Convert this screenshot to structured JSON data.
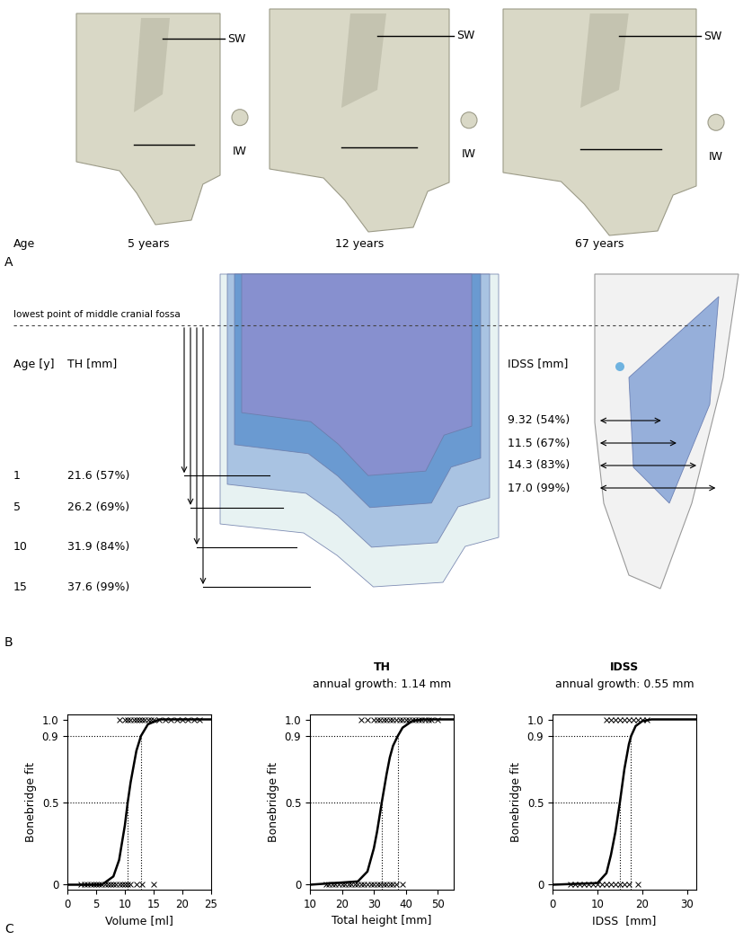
{
  "panel_A": {
    "label": "A",
    "age_label": "Age",
    "specimens": [
      {
        "age": "5 years",
        "sw_label": "SW",
        "iw_label": "IW"
      },
      {
        "age": "12 years",
        "sw_label": "SW",
        "iw_label": "IW"
      },
      {
        "age": "67 years",
        "sw_label": "SW",
        "iw_label": "IW"
      }
    ]
  },
  "panel_B": {
    "label": "B",
    "reference_line": "lowest point of middle cranial fossa",
    "th_table": {
      "age_header": "Age [y]",
      "value_header": "TH [mm]",
      "rows": [
        {
          "age": 1,
          "value": 21.6,
          "label": "21.6 (57%)"
        },
        {
          "age": 5,
          "value": 26.2,
          "label": "26.2 (69%)"
        },
        {
          "age": 10,
          "value": 31.9,
          "label": "31.9 (84%)"
        },
        {
          "age": 15,
          "value": 37.6,
          "label": "37.6 (99%)"
        }
      ]
    },
    "idss_table": {
      "value_header": "IDSS [mm]",
      "rows": [
        {
          "value": 9.32,
          "label": "9.32 (54%)"
        },
        {
          "value": 11.5,
          "label": "11.5 (67%)"
        },
        {
          "value": 14.3,
          "label": "14.3 (83%)"
        },
        {
          "value": 17.0,
          "label": "17.0 (99%)"
        }
      ]
    },
    "measures": [
      {
        "title": "TH",
        "subtitle": "annual growth: 1.14 mm"
      },
      {
        "title": "IDSS",
        "subtitle": "annual growth: 0.55 mm"
      }
    ]
  },
  "panel_C": {
    "label": "C"
  },
  "chart_data": [
    {
      "type": "line",
      "x_label": "Volume [ml]",
      "y_label": "Bonebridge fit",
      "xlim": [
        0,
        25
      ],
      "xticks": [
        0,
        5,
        10,
        15,
        20,
        25
      ],
      "ylim": [
        -0.03,
        1.03
      ],
      "yticks": [
        0,
        0.5,
        0.9,
        {
          "value": 1,
          "label": "1.0"
        }
      ],
      "reference_points": [
        {
          "x": 10.5,
          "y": 0.5
        },
        {
          "x": 12.8,
          "y": 0.9
        }
      ],
      "series": [
        {
          "type": "line",
          "color": "#000000",
          "x": [
            0,
            6,
            8,
            9,
            10,
            10.5,
            11,
            12,
            12.8,
            14,
            16,
            25
          ],
          "values": [
            0,
            0,
            0.05,
            0.15,
            0.36,
            0.5,
            0.62,
            0.81,
            0.9,
            0.97,
            1,
            1
          ]
        },
        {
          "type": "scatter",
          "marker": "x",
          "color": "#000000",
          "x": [
            2.3,
            3,
            3.5,
            4,
            4.5,
            5,
            5.5,
            6,
            6.5,
            7,
            7.5,
            8,
            8.5,
            9,
            9.5,
            10,
            10.5,
            11,
            12,
            13,
            15,
            9,
            10,
            10.5,
            11,
            11.5,
            12,
            12.5,
            13,
            13.5,
            14,
            14.5,
            15,
            16,
            17,
            18,
            19,
            20,
            21,
            22,
            23
          ],
          "values": [
            0,
            0,
            0,
            0,
            0,
            0,
            0,
            0,
            0,
            0,
            0,
            0,
            0,
            0,
            0,
            0,
            0,
            0,
            0,
            0,
            0,
            1,
            1,
            1,
            1,
            1,
            1,
            1,
            1,
            1,
            1,
            1,
            1,
            1,
            1,
            1,
            1,
            1,
            1,
            1,
            1
          ]
        }
      ]
    },
    {
      "type": "line",
      "x_label": "Total height [mm]",
      "y_label": "Bonebridge fit",
      "xlim": [
        10,
        55
      ],
      "xticks": [
        10,
        20,
        30,
        40,
        50
      ],
      "ylim": [
        -0.03,
        1.03
      ],
      "yticks": [
        0,
        0.5,
        0.9,
        {
          "value": 1,
          "label": "1.0"
        }
      ],
      "reference_points": [
        {
          "x": 32.5,
          "y": 0.5
        },
        {
          "x": 37.5,
          "y": 0.9
        }
      ],
      "series": [
        {
          "type": "line",
          "color": "#000000",
          "x": [
            10,
            25,
            28,
            30,
            31,
            32.5,
            34,
            35,
            36,
            37.5,
            39,
            42,
            45,
            55
          ],
          "values": [
            0,
            0.02,
            0.08,
            0.22,
            0.32,
            0.5,
            0.67,
            0.77,
            0.84,
            0.9,
            0.95,
            0.99,
            1,
            1
          ]
        },
        {
          "type": "scatter",
          "marker": "x",
          "color": "#000000",
          "x": [
            15,
            16,
            17,
            18,
            19,
            20,
            21,
            22,
            23,
            24,
            25,
            26,
            27,
            28,
            29,
            30,
            31,
            32,
            33,
            34,
            35,
            36,
            37,
            39,
            26,
            28,
            30,
            31,
            32,
            33,
            34,
            35,
            36,
            37,
            38,
            39,
            40,
            41,
            42,
            43,
            44,
            45,
            46,
            47,
            48,
            50
          ],
          "values": [
            0,
            0,
            0,
            0,
            0,
            0,
            0,
            0,
            0,
            0,
            0,
            0,
            0,
            0,
            0,
            0,
            0,
            0,
            0,
            0,
            0,
            0,
            0,
            0,
            1,
            1,
            1,
            1,
            1,
            1,
            1,
            1,
            1,
            1,
            1,
            1,
            1,
            1,
            1,
            1,
            1,
            1,
            1,
            1,
            1,
            1
          ]
        }
      ]
    },
    {
      "type": "line",
      "x_label": "IDSS  [mm]",
      "y_label": "Bonebridge fit",
      "xlim": [
        0,
        32
      ],
      "xticks": [
        0,
        10,
        20,
        30
      ],
      "ylim": [
        -0.03,
        1.03
      ],
      "yticks": [
        0,
        0.5,
        0.9,
        {
          "value": 1,
          "label": "1.0"
        }
      ],
      "reference_points": [
        {
          "x": 15,
          "y": 0.5
        },
        {
          "x": 17.5,
          "y": 0.9
        }
      ],
      "series": [
        {
          "type": "line",
          "color": "#000000",
          "x": [
            0,
            10,
            12,
            13,
            14,
            15,
            16,
            17,
            17.5,
            18.5,
            20,
            22,
            32
          ],
          "values": [
            0,
            0.01,
            0.07,
            0.18,
            0.32,
            0.5,
            0.7,
            0.85,
            0.9,
            0.96,
            0.99,
            1,
            1
          ]
        },
        {
          "type": "scatter",
          "marker": "x",
          "color": "#000000",
          "x": [
            4,
            5,
            6,
            7,
            8,
            9,
            10,
            11,
            12,
            13,
            14,
            15,
            16,
            17,
            19,
            12,
            13,
            14,
            15,
            16,
            17,
            18,
            19,
            20,
            21
          ],
          "values": [
            0,
            0,
            0,
            0,
            0,
            0,
            0,
            0,
            0,
            0,
            0,
            0,
            0,
            0,
            0,
            1,
            1,
            1,
            1,
            1,
            1,
            1,
            1,
            1,
            1
          ]
        }
      ]
    }
  ]
}
